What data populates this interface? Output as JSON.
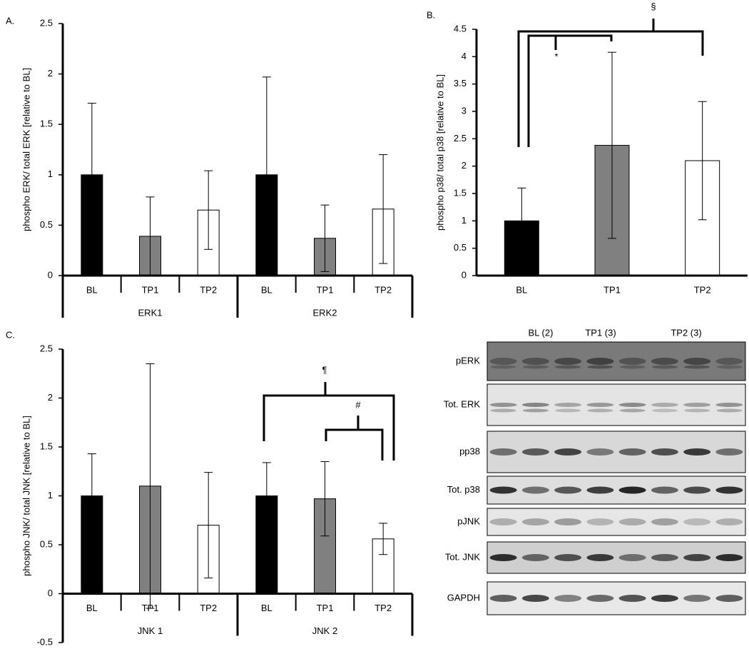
{
  "chart_data": [
    {
      "type": "bar",
      "title": "A.",
      "ylabel": "phospho ERK/ total ERK [relative to BL]",
      "categories": [
        "BL",
        "TP1",
        "TP2",
        "BL",
        "TP1",
        "TP2"
      ],
      "groups": [
        "ERK1",
        "ERK2"
      ],
      "values": [
        1.0,
        0.39,
        0.65,
        1.0,
        0.37,
        0.66
      ],
      "errors": [
        0.71,
        0.39,
        0.39,
        0.97,
        0.33,
        0.54
      ],
      "colors": [
        "#000000",
        "#808080",
        "#ffffff",
        "#000000",
        "#808080",
        "#ffffff"
      ],
      "ylim": [
        0,
        2.5
      ],
      "yticks": [
        0,
        0.5,
        1,
        1.5,
        2,
        2.5
      ]
    },
    {
      "type": "bar",
      "title": "B.",
      "ylabel": "phospho p38/ total p38 [relative to BL]",
      "categories": [
        "BL",
        "TP1",
        "TP2"
      ],
      "values": [
        1.0,
        2.38,
        2.1
      ],
      "errors": [
        0.6,
        1.7,
        1.08
      ],
      "colors": [
        "#000000",
        "#808080",
        "#ffffff"
      ],
      "ylim": [
        0,
        4.5
      ],
      "yticks": [
        0,
        0.5,
        1,
        1.5,
        2,
        2.5,
        3,
        3.5,
        4,
        4.5
      ],
      "annotations": [
        "*",
        "§"
      ]
    },
    {
      "type": "bar",
      "title": "C.",
      "ylabel": "phospho JNK/ total JNK [relative to BL]",
      "categories": [
        "BL",
        "TP1",
        "TP2",
        "BL",
        "TP1",
        "TP2"
      ],
      "groups": [
        "JNK 1",
        "JNK 2"
      ],
      "values": [
        1.0,
        1.1,
        0.7,
        1.0,
        0.97,
        0.56
      ],
      "errors": [
        0.43,
        1.25,
        0.54,
        0.34,
        0.38,
        0.16
      ],
      "colors": [
        "#000000",
        "#808080",
        "#ffffff",
        "#000000",
        "#808080",
        "#ffffff"
      ],
      "ylim": [
        -0.5,
        2.5
      ],
      "yticks": [
        -0.5,
        0,
        0.5,
        1,
        1.5,
        2,
        2.5
      ],
      "annotations": [
        "¶",
        "#"
      ]
    }
  ],
  "blot": {
    "lanes": [
      "BL (2)",
      "TP1 (3)",
      "TP2 (3)"
    ],
    "rows": [
      "pERK",
      "Tot. ERK",
      "pp38",
      "Tot. p38",
      "pJNK",
      "Tot. JNK",
      "GAPDH"
    ]
  }
}
